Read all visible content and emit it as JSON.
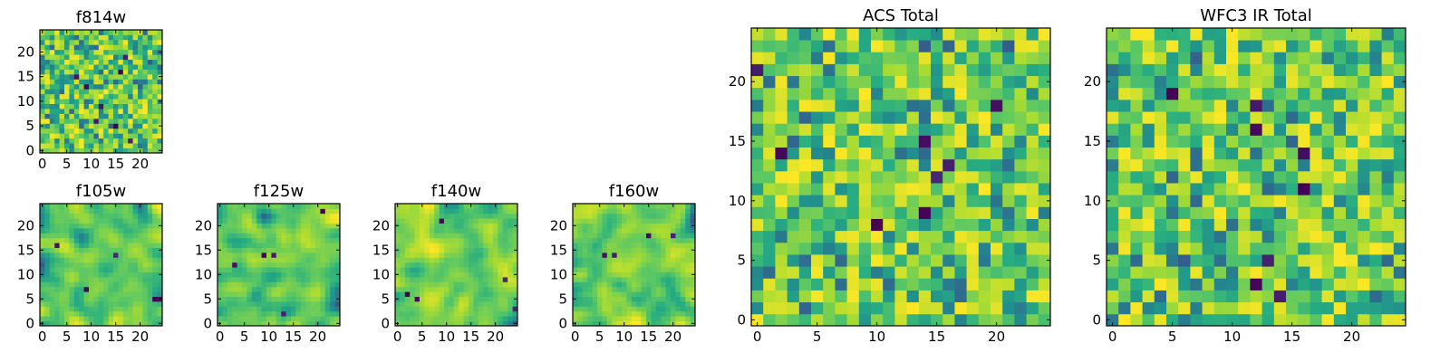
{
  "chart_data": [
    {
      "id": "f814w",
      "type": "heatmap",
      "title": "f814w",
      "xticks": [
        "0",
        "5",
        "10",
        "15",
        "20"
      ],
      "yticks": [
        "0",
        "5",
        "10",
        "15",
        "20"
      ],
      "xlim": [
        0,
        25
      ],
      "ylim": [
        0,
        25
      ],
      "grid_size": 25,
      "seed": 11,
      "smooth": 0,
      "value_range": [
        0,
        1
      ],
      "colormap": "viridis"
    },
    {
      "id": "f105w",
      "type": "heatmap",
      "title": "f105w",
      "xticks": [
        "0",
        "5",
        "10",
        "15",
        "20"
      ],
      "yticks": [
        "0",
        "5",
        "10",
        "15",
        "20"
      ],
      "xlim": [
        0,
        25
      ],
      "ylim": [
        0,
        25
      ],
      "grid_size": 25,
      "seed": 23,
      "smooth": 2,
      "value_range": [
        0,
        1
      ],
      "colormap": "viridis"
    },
    {
      "id": "f125w",
      "type": "heatmap",
      "title": "f125w",
      "xticks": [
        "0",
        "5",
        "10",
        "15",
        "20"
      ],
      "yticks": [
        "0",
        "5",
        "10",
        "15",
        "20"
      ],
      "xlim": [
        0,
        25
      ],
      "ylim": [
        0,
        25
      ],
      "grid_size": 25,
      "seed": 37,
      "smooth": 2,
      "value_range": [
        0,
        1
      ],
      "colormap": "viridis"
    },
    {
      "id": "f140w",
      "type": "heatmap",
      "title": "f140w",
      "xticks": [
        "0",
        "5",
        "10",
        "15",
        "20"
      ],
      "yticks": [
        "0",
        "5",
        "10",
        "15",
        "20"
      ],
      "xlim": [
        0,
        25
      ],
      "ylim": [
        0,
        25
      ],
      "grid_size": 25,
      "seed": 41,
      "smooth": 2,
      "value_range": [
        0,
        1
      ],
      "colormap": "viridis"
    },
    {
      "id": "f160w",
      "type": "heatmap",
      "title": "f160w",
      "xticks": [
        "0",
        "5",
        "10",
        "15",
        "20"
      ],
      "yticks": [
        "0",
        "5",
        "10",
        "15",
        "20"
      ],
      "xlim": [
        0,
        25
      ],
      "ylim": [
        0,
        25
      ],
      "grid_size": 25,
      "seed": 53,
      "smooth": 2,
      "value_range": [
        0,
        1
      ],
      "colormap": "viridis"
    },
    {
      "id": "acs-total",
      "type": "heatmap",
      "title": "ACS Total",
      "xticks": [
        "0",
        "5",
        "10",
        "15",
        "20"
      ],
      "yticks": [
        "0",
        "5",
        "10",
        "15",
        "20"
      ],
      "xlim": [
        0,
        25
      ],
      "ylim": [
        0,
        25
      ],
      "grid_size": 25,
      "seed": 67,
      "smooth": 0,
      "value_range": [
        0,
        1
      ],
      "colormap": "viridis"
    },
    {
      "id": "wfc3-ir-total",
      "type": "heatmap",
      "title": "WFC3 IR Total",
      "xticks": [
        "0",
        "5",
        "10",
        "15",
        "20"
      ],
      "yticks": [
        "0",
        "5",
        "10",
        "15",
        "20"
      ],
      "xlim": [
        0,
        25
      ],
      "ylim": [
        0,
        25
      ],
      "grid_size": 25,
      "seed": 79,
      "smooth": 0,
      "value_range": [
        0,
        1
      ],
      "colormap": "viridis"
    }
  ]
}
